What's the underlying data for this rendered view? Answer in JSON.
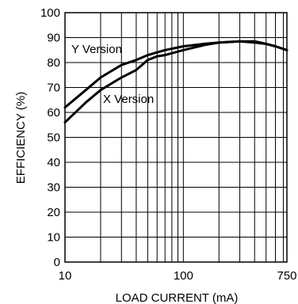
{
  "chart_data": {
    "type": "line",
    "xlabel": "LOAD CURRENT (mA)",
    "ylabel": "EFFICIENCY (%)",
    "x_scale": "log",
    "xlim": [
      10,
      750
    ],
    "ylim": [
      0,
      100
    ],
    "grid": true,
    "x_ticks": [
      10,
      100,
      750
    ],
    "x_tick_labels": [
      "10",
      "100",
      "750"
    ],
    "y_ticks": [
      0,
      10,
      20,
      30,
      40,
      50,
      60,
      70,
      80,
      90,
      100
    ],
    "y_tick_labels": [
      "0",
      "10",
      "20",
      "30",
      "40",
      "50",
      "60",
      "70",
      "80",
      "90",
      "100"
    ],
    "series": [
      {
        "name": "Y Version",
        "x": [
          10,
          15,
          20,
          30,
          40,
          50,
          70,
          100,
          150,
          200,
          300,
          400,
          500,
          600,
          750
        ],
        "y": [
          62,
          69,
          74,
          79,
          81,
          83,
          85,
          86.5,
          87.5,
          88,
          88.5,
          88,
          87.5,
          86.5,
          85
        ]
      },
      {
        "name": "X Version",
        "x": [
          10,
          15,
          20,
          30,
          40,
          50,
          60,
          70,
          100,
          150,
          200,
          300,
          400,
          500,
          600,
          750
        ],
        "y": [
          56,
          64,
          69,
          74,
          77,
          81,
          82.5,
          83,
          85,
          87,
          88,
          88.5,
          88.5,
          87.5,
          86.5,
          85
        ]
      }
    ]
  }
}
